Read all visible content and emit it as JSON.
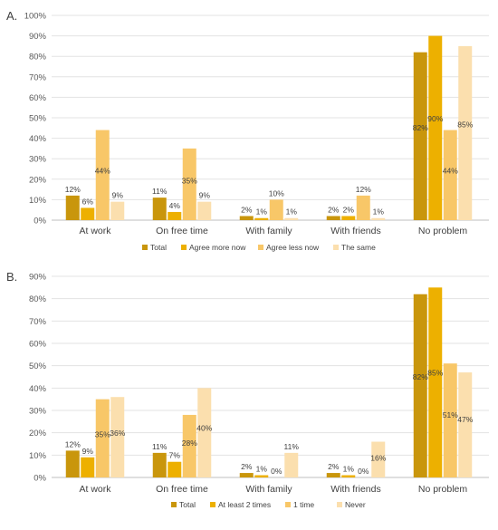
{
  "chart_data": [
    {
      "type": "bar",
      "title": "",
      "panel_label": "A.",
      "categories": [
        "At work",
        "On free time",
        "With family",
        "With friends",
        "No problem"
      ],
      "ylim": [
        0,
        100
      ],
      "yticks": [
        "0%",
        "10%",
        "20%",
        "30%",
        "40%",
        "50%",
        "60%",
        "70%",
        "80%",
        "90%",
        "100%"
      ],
      "grid": true,
      "legend_position": "bottom",
      "series": [
        {
          "name": "Total",
          "color": "#c9960c",
          "values": [
            12,
            11,
            2,
            2,
            82
          ],
          "labels": [
            "12%",
            "11%",
            "2%",
            "2%",
            "82%"
          ]
        },
        {
          "name": "Agree more now",
          "color": "#edb000",
          "values": [
            6,
            4,
            1,
            2,
            90
          ],
          "labels": [
            "6%",
            "4%",
            "1%",
            "2%",
            "90%"
          ]
        },
        {
          "name": "Agree less now",
          "color": "#f8c768",
          "values": [
            44,
            35,
            10,
            12,
            44
          ],
          "labels": [
            "44%",
            "35%",
            "10%",
            "12%",
            "44%"
          ]
        },
        {
          "name": "The same",
          "color": "#fbdfae",
          "values": [
            9,
            9,
            1,
            1,
            85
          ],
          "labels": [
            "9%",
            "9%",
            "1%",
            "1%",
            "85%"
          ]
        }
      ]
    },
    {
      "type": "bar",
      "title": "",
      "panel_label": "B.",
      "categories": [
        "At work",
        "On free time",
        "With family",
        "With friends",
        "No problem"
      ],
      "ylim": [
        0,
        90
      ],
      "yticks": [
        "0%",
        "10%",
        "20%",
        "30%",
        "40%",
        "50%",
        "60%",
        "70%",
        "80%",
        "90%"
      ],
      "grid": true,
      "legend_position": "bottom",
      "series": [
        {
          "name": "Total",
          "color": "#c9960c",
          "values": [
            12,
            11,
            2,
            2,
            82
          ],
          "labels": [
            "12%",
            "11%",
            "2%",
            "2%",
            "82%"
          ]
        },
        {
          "name": "At least 2 times",
          "color": "#edb000",
          "values": [
            9,
            7,
            1,
            1,
            85
          ],
          "labels": [
            "9%",
            "7%",
            "1%",
            "1%",
            "85%"
          ]
        },
        {
          "name": "1 time",
          "color": "#f8c768",
          "values": [
            35,
            28,
            0,
            0,
            51
          ],
          "labels": [
            "35%",
            "28%",
            "0%",
            "0%",
            "51%"
          ]
        },
        {
          "name": "Never",
          "color": "#fbdfae",
          "values": [
            36,
            40,
            11,
            16,
            47
          ],
          "labels": [
            "36%",
            "40%",
            "11%",
            "16%",
            "47%"
          ]
        }
      ]
    }
  ]
}
